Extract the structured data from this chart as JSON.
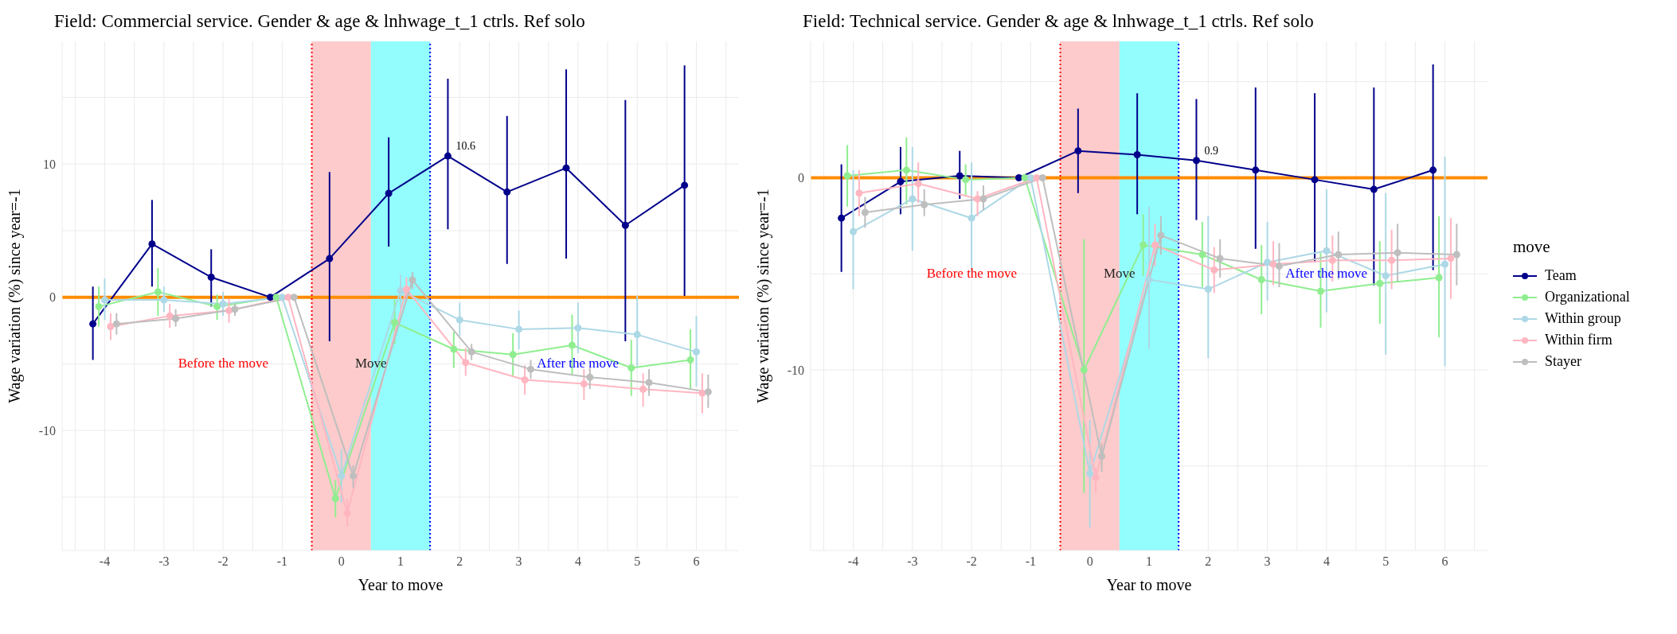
{
  "chart_data": [
    {
      "type": "line",
      "title": "Field: Commercial service. Gender & age & lnhwage_t_1 ctrls. Ref solo",
      "xlabel": "Year to move",
      "ylabel": "Wage variation (%) since year=-1",
      "xlim": [
        -4.72,
        6.72
      ],
      "xticks": [
        -4,
        {
          "value": -3.5,
          "label": null
        },
        -3,
        {
          "value": -2.5,
          "label": null
        },
        -2,
        {
          "value": -1.5,
          "label": null
        },
        -1,
        {
          "value": -0.5,
          "label": null
        },
        0,
        1,
        {
          "value": 1.5,
          "label": null
        },
        2,
        {
          "value": 2.5,
          "label": null
        },
        3,
        {
          "value": 3.5,
          "label": null
        },
        4,
        {
          "value": 4.5,
          "label": null
        },
        5,
        {
          "value": 5.5,
          "label": null
        },
        6,
        {
          "value": 6.5,
          "label": null
        },
        {
          "value": -4.5,
          "label": null
        }
      ],
      "ylim": [
        -19,
        19.2
      ],
      "yticks": [
        {
          "value": -15,
          "label": null
        },
        -10,
        {
          "value": -5,
          "label": null
        },
        0,
        {
          "value": 5,
          "label": null
        },
        10,
        {
          "value": 15,
          "label": null
        }
      ],
      "grid": true,
      "marker": "circle",
      "line_style": "solid",
      "legend": false,
      "series": [
        {
          "color": "#00008b",
          "x": [
            -4.2,
            -3.2,
            -2.2,
            -1.2,
            -0.2,
            0.8,
            1.8,
            2.8,
            3.8,
            4.8,
            5.8
          ],
          "values": [
            -2.0,
            4.0,
            1.5,
            0,
            2.9,
            7.8,
            10.6,
            7.9,
            9.7,
            5.4,
            8.4
          ],
          "value_labels": [
            null,
            null,
            null,
            null,
            null,
            null,
            "10.6",
            null,
            null,
            null,
            null
          ],
          "errors": [
            [
              -4.7,
              0.8
            ],
            [
              0.8,
              7.3
            ],
            [
              -0.7,
              3.6
            ],
            null,
            [
              -3.3,
              9.4
            ],
            [
              3.8,
              12.0
            ],
            [
              5.1,
              16.4
            ],
            [
              2.5,
              13.6
            ],
            [
              2.9,
              17.1
            ],
            [
              -3.3,
              14.8
            ],
            [
              0.1,
              17.4
            ]
          ]
        },
        {
          "color": "#90ee90",
          "x": [
            -4.1,
            -3.1,
            -2.1,
            -1.1,
            -0.1,
            0.9,
            1.9,
            2.9,
            3.9,
            4.9,
            5.9
          ],
          "values": [
            -0.7,
            0.4,
            -0.7,
            0,
            -15.1,
            -1.9,
            -3.9,
            -4.3,
            -3.6,
            -5.3,
            -4.7
          ],
          "errors": [
            [
              -2.2,
              0.8
            ],
            [
              -1.4,
              2.2
            ],
            [
              -1.7,
              0.2
            ],
            null,
            [
              -16.5,
              -13.7
            ],
            [
              -3.5,
              -0.2
            ],
            [
              -5.3,
              -2.6
            ],
            [
              -5.9,
              -2.7
            ],
            [
              -5.8,
              -1.3
            ],
            [
              -7.4,
              -3.2
            ],
            [
              -6.9,
              -2.4
            ]
          ]
        },
        {
          "color": "#add8e6",
          "x": [
            -4.0,
            -3.0,
            -2.0,
            -1.0,
            0.0,
            1.0,
            2.0,
            3.0,
            4.0,
            5.0,
            6.0
          ],
          "values": [
            -0.2,
            -0.2,
            -0.5,
            0,
            -13.4,
            0.5,
            -1.7,
            -2.4,
            -2.3,
            -2.8,
            -4.1
          ],
          "errors": [
            [
              -1.7,
              1.4
            ],
            [
              -1.1,
              0.8
            ],
            [
              -1.4,
              0.4
            ],
            null,
            [
              -15.4,
              -11.4
            ],
            [
              -0.8,
              1.7
            ],
            [
              -2.9,
              -0.4
            ],
            [
              -3.9,
              -1.0
            ],
            [
              -4.2,
              -0.4
            ],
            [
              -5.2,
              0.1
            ],
            [
              -6.7,
              -1.4
            ]
          ]
        },
        {
          "color": "#ffb6c1",
          "x": [
            -3.9,
            -2.9,
            -1.9,
            -0.9,
            0.1,
            1.1,
            2.1,
            3.1,
            4.1,
            5.1,
            6.1
          ],
          "values": [
            -2.2,
            -1.4,
            -1.0,
            0,
            -16.2,
            0.6,
            -4.9,
            -6.2,
            -6.5,
            -6.9,
            -7.2
          ],
          "errors": [
            [
              -3.2,
              -1.2
            ],
            [
              -2.3,
              -0.5
            ],
            [
              -1.9,
              -0.1
            ],
            null,
            [
              -17.2,
              -15.1
            ],
            [
              -0.3,
              1.5
            ],
            [
              -5.9,
              -3.8
            ],
            [
              -7.3,
              -5.1
            ],
            [
              -7.7,
              -5.4
            ],
            [
              -8.2,
              -5.7
            ],
            [
              -8.7,
              -5.7
            ]
          ]
        },
        {
          "color": "#bebebe",
          "x": [
            -3.8,
            -2.8,
            -1.8,
            -0.8,
            0.2,
            1.2,
            2.2,
            3.2,
            4.2,
            5.2,
            6.2
          ],
          "values": [
            -2.0,
            -1.6,
            -0.9,
            0,
            -13.4,
            1.3,
            -4.1,
            -5.4,
            -6.0,
            -6.4,
            -7.1
          ],
          "errors": [
            [
              -2.8,
              -1.2
            ],
            [
              -2.2,
              -0.9
            ],
            [
              -1.4,
              -0.5
            ],
            null,
            [
              -14.3,
              -12.6
            ],
            [
              0.6,
              1.9
            ],
            [
              -4.7,
              -3.5
            ],
            [
              -6.1,
              -4.7
            ],
            [
              -6.9,
              -5.3
            ],
            [
              -7.4,
              -5.4
            ],
            [
              -8.3,
              -5.8
            ]
          ]
        }
      ],
      "bands": [
        {
          "axis": "x",
          "from": -0.5,
          "to": 0.5,
          "color": "#fdcbcb"
        },
        {
          "axis": "x",
          "from": 0.5,
          "to": 1.5,
          "color": "#93fdfd"
        }
      ],
      "ref_lines": [
        {
          "axis": "y",
          "value": 0,
          "color": "#ff8c00",
          "line_style": "solid"
        },
        {
          "axis": "x",
          "value": -0.5,
          "color": "#ff0000",
          "line_style": "dotted"
        },
        {
          "axis": "x",
          "value": 1.5,
          "color": "#0000ff",
          "line_style": "dotted"
        }
      ],
      "annotations": [
        "Before the move",
        {
          "text": "Move",
          "x": 0.5,
          "y": -5
        },
        "After the move"
      ]
    },
    {
      "type": "line",
      "title": "Field: Technical service. Gender & age & lnhwage_t_1 ctrls. Ref solo",
      "xlabel": "Year to move",
      "ylabel": "Wage variation (%) since year=-1",
      "legend_title": "move",
      "xlim": [
        -4.72,
        6.72
      ],
      "xticks": [
        -4,
        {
          "value": -3.5,
          "label": null
        },
        -3,
        {
          "value": -2.5,
          "label": null
        },
        -2,
        {
          "value": -1.5,
          "label": null
        },
        -1,
        {
          "value": -0.5,
          "label": null
        },
        0,
        1,
        {
          "value": 1.5,
          "label": null
        },
        2,
        {
          "value": 2.5,
          "label": null
        },
        3,
        {
          "value": 3.5,
          "label": null
        },
        4,
        {
          "value": 4.5,
          "label": null
        },
        5,
        {
          "value": 5.5,
          "label": null
        },
        6,
        {
          "value": 6.5,
          "label": null
        },
        {
          "value": -4.5,
          "label": null
        }
      ],
      "ylim": [
        -19.4,
        7.1
      ],
      "yticks": [
        {
          "value": -15,
          "label": null
        },
        -10,
        {
          "value": -5,
          "label": null
        },
        0,
        {
          "value": 5,
          "label": null
        }
      ],
      "grid": true,
      "marker": "circle",
      "line_style": "solid",
      "legend": "right",
      "series": [
        {
          "name": "Team",
          "color": "#00008b",
          "x": [
            -4.2,
            -3.2,
            -2.2,
            -1.2,
            -0.2,
            0.8,
            1.8,
            2.8,
            3.8,
            4.8,
            5.8
          ],
          "values": [
            -2.1,
            -0.2,
            0.1,
            0,
            1.4,
            1.2,
            0.9,
            0.4,
            -0.1,
            -0.6,
            0.4
          ],
          "value_labels": [
            null,
            null,
            null,
            null,
            null,
            null,
            "0.9",
            null,
            null,
            null,
            null
          ],
          "errors": [
            [
              -4.9,
              0.7
            ],
            [
              -1.9,
              1.6
            ],
            [
              -1.1,
              1.4
            ],
            null,
            [
              -0.8,
              3.6
            ],
            [
              -1.9,
              4.4
            ],
            [
              -2.2,
              4.1
            ],
            [
              -3.7,
              4.7
            ],
            [
              -4.4,
              4.4
            ],
            [
              -5.6,
              4.7
            ],
            [
              -4.8,
              5.9
            ]
          ]
        },
        {
          "name": "Organizational",
          "color": "#90ee90",
          "x": [
            -4.1,
            -3.1,
            -2.1,
            -1.1,
            -0.1,
            0.9,
            1.9,
            2.9,
            3.9,
            4.9,
            5.9
          ],
          "values": [
            0.1,
            0.4,
            -0.1,
            0,
            -10.0,
            -3.5,
            -4.0,
            -5.3,
            -5.9,
            -5.5,
            -5.2
          ],
          "errors": [
            [
              -1.5,
              1.7
            ],
            [
              -1.4,
              2.1
            ],
            [
              -0.9,
              0.7
            ],
            null,
            [
              -16.4,
              -3.2
            ],
            [
              -5.1,
              -1.9
            ],
            [
              -5.7,
              -2.3
            ],
            [
              -7.1,
              -3.5
            ],
            [
              -7.8,
              -3.9
            ],
            [
              -7.6,
              -3.3
            ],
            [
              -8.3,
              -2.0
            ]
          ]
        },
        {
          "name": "Within group",
          "color": "#add8e6",
          "x": [
            -4.0,
            -3.0,
            -2.0,
            -1.0,
            0.0,
            1.0,
            2.0,
            3.0,
            4.0,
            5.0,
            6.0
          ],
          "values": [
            -2.8,
            -1.1,
            -2.1,
            0,
            -15.4,
            -5.3,
            -5.8,
            -4.4,
            -3.8,
            -5.1,
            -4.5
          ],
          "errors": [
            [
              -5.8,
              0.4
            ],
            [
              -3.8,
              1.6
            ],
            [
              -4.9,
              0.8
            ],
            null,
            [
              -18.2,
              -12.6
            ],
            [
              -8.9,
              -1.5
            ],
            [
              -9.4,
              -2.0
            ],
            [
              -6.4,
              -2.3
            ],
            [
              -7.0,
              -0.6
            ],
            [
              -9.2,
              -0.8
            ],
            [
              -9.8,
              1.1
            ]
          ]
        },
        {
          "name": "Within firm",
          "color": "#ffb6c1",
          "x": [
            -3.9,
            -2.9,
            -1.9,
            -0.9,
            0.1,
            1.1,
            2.1,
            3.1,
            4.1,
            5.1,
            6.1
          ],
          "values": [
            -0.8,
            -0.3,
            -1.1,
            0,
            -15.6,
            -3.5,
            -4.8,
            -4.5,
            -4.3,
            -4.3,
            -4.2
          ],
          "errors": [
            [
              -2.0,
              0.4
            ],
            [
              -1.3,
              0.8
            ],
            [
              -2.0,
              -0.7
            ],
            null,
            [
              -16.4,
              -15.1
            ],
            [
              -4.6,
              -2.4
            ],
            [
              -6.0,
              -3.6
            ],
            [
              -5.6,
              -3.3
            ],
            [
              -5.4,
              -3.0
            ],
            [
              -5.8,
              -2.7
            ],
            [
              -6.3,
              -2.1
            ]
          ]
        },
        {
          "name": "Stayer",
          "color": "#bebebe",
          "x": [
            -3.8,
            -2.8,
            -1.8,
            -0.8,
            0.2,
            1.2,
            2.2,
            3.2,
            4.2,
            5.2,
            6.2
          ],
          "values": [
            -1.8,
            -1.4,
            -1.1,
            0,
            -14.5,
            -3.0,
            -4.2,
            -4.6,
            -4.0,
            -3.9,
            -4.0
          ],
          "errors": [
            [
              -2.6,
              -1.0
            ],
            [
              -2.0,
              -0.6
            ],
            [
              -1.7,
              -0.4
            ],
            null,
            [
              -15.3,
              -13.8
            ],
            [
              -4.0,
              -2.0
            ],
            [
              -5.2,
              -3.2
            ],
            [
              -5.7,
              -3.4
            ],
            [
              -5.3,
              -2.8
            ],
            [
              -5.4,
              -2.4
            ],
            [
              -5.6,
              -2.4
            ]
          ]
        }
      ],
      "bands": [
        {
          "axis": "x",
          "from": -0.5,
          "to": 0.5,
          "color": "#fdcbcb"
        },
        {
          "axis": "x",
          "from": 0.5,
          "to": 1.5,
          "color": "#93fdfd"
        }
      ],
      "ref_lines": [
        {
          "axis": "y",
          "value": 0,
          "color": "#ff8c00",
          "line_style": "solid"
        },
        {
          "axis": "x",
          "value": -0.5,
          "color": "#ff0000",
          "line_style": "dotted"
        },
        {
          "axis": "x",
          "value": 1.5,
          "color": "#0000ff",
          "line_style": "dotted"
        }
      ],
      "annotations": [
        "Before the move",
        {
          "text": "Move",
          "x": 0.5,
          "y": -5
        },
        "After the move"
      ]
    }
  ]
}
